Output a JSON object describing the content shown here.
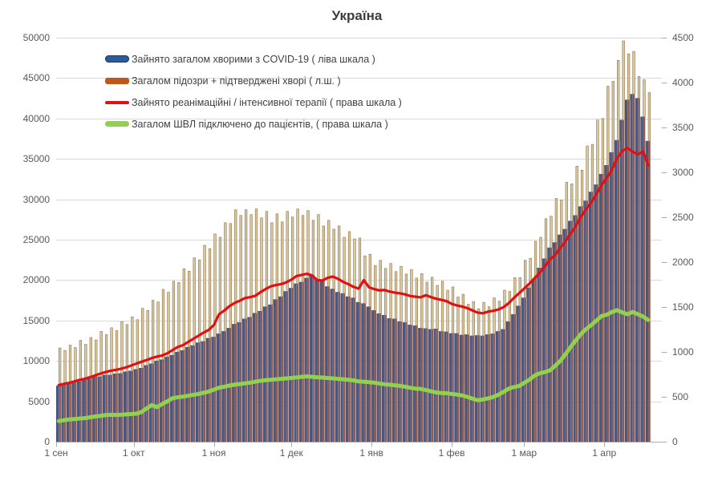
{
  "chart_data": {
    "type": "bar+line",
    "title": "Україна",
    "background": "#ffffff",
    "gridline_color": "#d9d9d9",
    "axis_color": "#ababab",
    "days_total": 229,
    "sample_step_days": 2,
    "left_axis": {
      "min": 0,
      "max": 50000,
      "step": 5000,
      "ticks": [
        0,
        5000,
        10000,
        15000,
        20000,
        25000,
        30000,
        35000,
        40000,
        45000,
        50000
      ]
    },
    "right_axis": {
      "min": 0,
      "max": 4500,
      "step": 500,
      "ticks": [
        0,
        500,
        1000,
        1500,
        2000,
        2500,
        3000,
        3500,
        4000,
        4500
      ]
    },
    "x_ticks": [
      {
        "label": "1 сен",
        "day": 0
      },
      {
        "label": "1 окт",
        "day": 30
      },
      {
        "label": "1 ноя",
        "day": 61
      },
      {
        "label": "1 дек",
        "day": 91
      },
      {
        "label": "1 янв",
        "day": 122
      },
      {
        "label": "1 фев",
        "day": 153
      },
      {
        "label": "1 мар",
        "day": 181
      },
      {
        "label": "1 апр",
        "day": 212
      }
    ],
    "series": [
      {
        "name": "Зайнято загалом хворими з COVID-19 ( ліва шкала )",
        "type": "bar",
        "axis": "left",
        "color": "#4b5a85",
        "edge": "#39476e",
        "legend_color": "#2e5b9b",
        "values": [
          6900,
          7100,
          7150,
          7400,
          7450,
          7700,
          7800,
          8050,
          8050,
          8250,
          8250,
          8400,
          8450,
          8650,
          8750,
          8950,
          9100,
          9450,
          9650,
          10000,
          10150,
          10500,
          10700,
          11100,
          11300,
          11700,
          11900,
          12250,
          12400,
          12800,
          12950,
          13350,
          13650,
          14050,
          14550,
          14750,
          15200,
          15400,
          15900,
          16150,
          16700,
          16950,
          17600,
          17950,
          18600,
          19000,
          19550,
          19750,
          20250,
          20500,
          20100,
          19850,
          19200,
          18900,
          18500,
          18350,
          17950,
          17800,
          17250,
          17100,
          16700,
          16250,
          15850,
          15650,
          15250,
          15200,
          14850,
          14750,
          14450,
          14350,
          14050,
          14000,
          13900,
          13950,
          13650,
          13600,
          13400,
          13400,
          13200,
          13250,
          13100,
          13150,
          13100,
          13250,
          13350,
          13650,
          13900,
          14850,
          15750,
          16800,
          17800,
          19050,
          20150,
          21500,
          22650,
          24000,
          24650,
          25600,
          26300,
          27300,
          28000,
          29100,
          29800,
          30900,
          31800,
          33100,
          34200,
          35800,
          37300,
          39800,
          42300,
          43000,
          42500,
          40200,
          37200
        ]
      },
      {
        "name": "Загалом підозри + підтверджені хворі ( л.ш. )",
        "type": "bar",
        "axis": "left",
        "color": "#d9c9a0",
        "edge": "#8f7048",
        "overlap_color": "#8d5b53",
        "legend_color": "#c0561a",
        "values": [
          11600,
          11300,
          11950,
          11650,
          12550,
          12050,
          12900,
          12600,
          13650,
          13250,
          14100,
          13750,
          14850,
          14500,
          15450,
          15100,
          16500,
          16250,
          17500,
          17300,
          18850,
          18500,
          19850,
          19700,
          21400,
          21100,
          22750,
          22500,
          24300,
          23900,
          25700,
          25300,
          27100,
          27000,
          28700,
          28000,
          28700,
          28100,
          28800,
          27700,
          28500,
          27100,
          28200,
          27200,
          28500,
          27800,
          28800,
          28000,
          28600,
          27400,
          28100,
          26700,
          27400,
          26300,
          26700,
          25300,
          26000,
          25100,
          25200,
          23000,
          23200,
          21800,
          22450,
          21450,
          22050,
          21050,
          21700,
          20750,
          21300,
          20250,
          20800,
          19750,
          20350,
          19350,
          19850,
          18750,
          19150,
          17900,
          18250,
          17000,
          17350,
          16450,
          17250,
          16700,
          17800,
          17400,
          18750,
          18600,
          20300,
          20300,
          22450,
          22700,
          24800,
          25300,
          27600,
          27900,
          30100,
          29900,
          32100,
          31900,
          34100,
          33600,
          36600,
          36800,
          39800,
          40000,
          44000,
          44600,
          47200,
          49600,
          48000,
          48300,
          45200,
          44800,
          43200
        ]
      },
      {
        "name": "Зайнято реанімаційні / інтенсивної терапії ( права шкала )",
        "type": "line",
        "axis": "right",
        "color": "#e01112",
        "legend_color": "#e01112",
        "line_width": 3.2,
        "values": [
          630,
          645,
          655,
          672,
          688,
          700,
          718,
          738,
          758,
          775,
          790,
          800,
          812,
          828,
          848,
          870,
          890,
          910,
          932,
          948,
          960,
          985,
          1020,
          1055,
          1075,
          1110,
          1145,
          1180,
          1215,
          1245,
          1300,
          1420,
          1460,
          1510,
          1545,
          1570,
          1600,
          1610,
          1625,
          1665,
          1700,
          1730,
          1745,
          1755,
          1775,
          1805,
          1845,
          1858,
          1870,
          1852,
          1800,
          1795,
          1825,
          1840,
          1815,
          1780,
          1755,
          1725,
          1705,
          1800,
          1720,
          1700,
          1685,
          1690,
          1672,
          1660,
          1652,
          1640,
          1622,
          1615,
          1608,
          1632,
          1610,
          1592,
          1580,
          1565,
          1535,
          1518,
          1505,
          1488,
          1462,
          1438,
          1430,
          1448,
          1458,
          1472,
          1498,
          1542,
          1600,
          1652,
          1705,
          1760,
          1820,
          1880,
          1952,
          2030,
          2080,
          2160,
          2230,
          2320,
          2400,
          2510,
          2590,
          2665,
          2760,
          2860,
          2940,
          3030,
          3160,
          3240,
          3270,
          3230,
          3200,
          3235,
          3075
        ]
      },
      {
        "name": "Загалом ШВЛ  підключено до пацієнтів, ( права шкала )",
        "type": "line",
        "axis": "right",
        "color": "#92d050",
        "legend_color": "#92d050",
        "line_width": 5,
        "values": [
          230,
          240,
          248,
          252,
          258,
          262,
          272,
          280,
          288,
          296,
          300,
          298,
          300,
          305,
          308,
          312,
          330,
          372,
          408,
          385,
          420,
          450,
          485,
          495,
          502,
          512,
          522,
          532,
          545,
          558,
          580,
          602,
          612,
          625,
          635,
          642,
          650,
          658,
          668,
          678,
          685,
          690,
          695,
          700,
          705,
          710,
          716,
          722,
          728,
          722,
          718,
          714,
          710,
          705,
          700,
          695,
          690,
          683,
          672,
          668,
          663,
          658,
          648,
          640,
          635,
          628,
          622,
          612,
          600,
          592,
          588,
          575,
          562,
          548,
          542,
          540,
          532,
          525,
          515,
          500,
          480,
          462,
          470,
          482,
          498,
          522,
          555,
          590,
          608,
          620,
          655,
          690,
          735,
          762,
          775,
          795,
          845,
          900,
          975,
          1055,
          1130,
          1200,
          1255,
          1300,
          1350,
          1400,
          1415,
          1445,
          1465,
          1440,
          1420,
          1445,
          1420,
          1395,
          1355
        ]
      }
    ]
  }
}
